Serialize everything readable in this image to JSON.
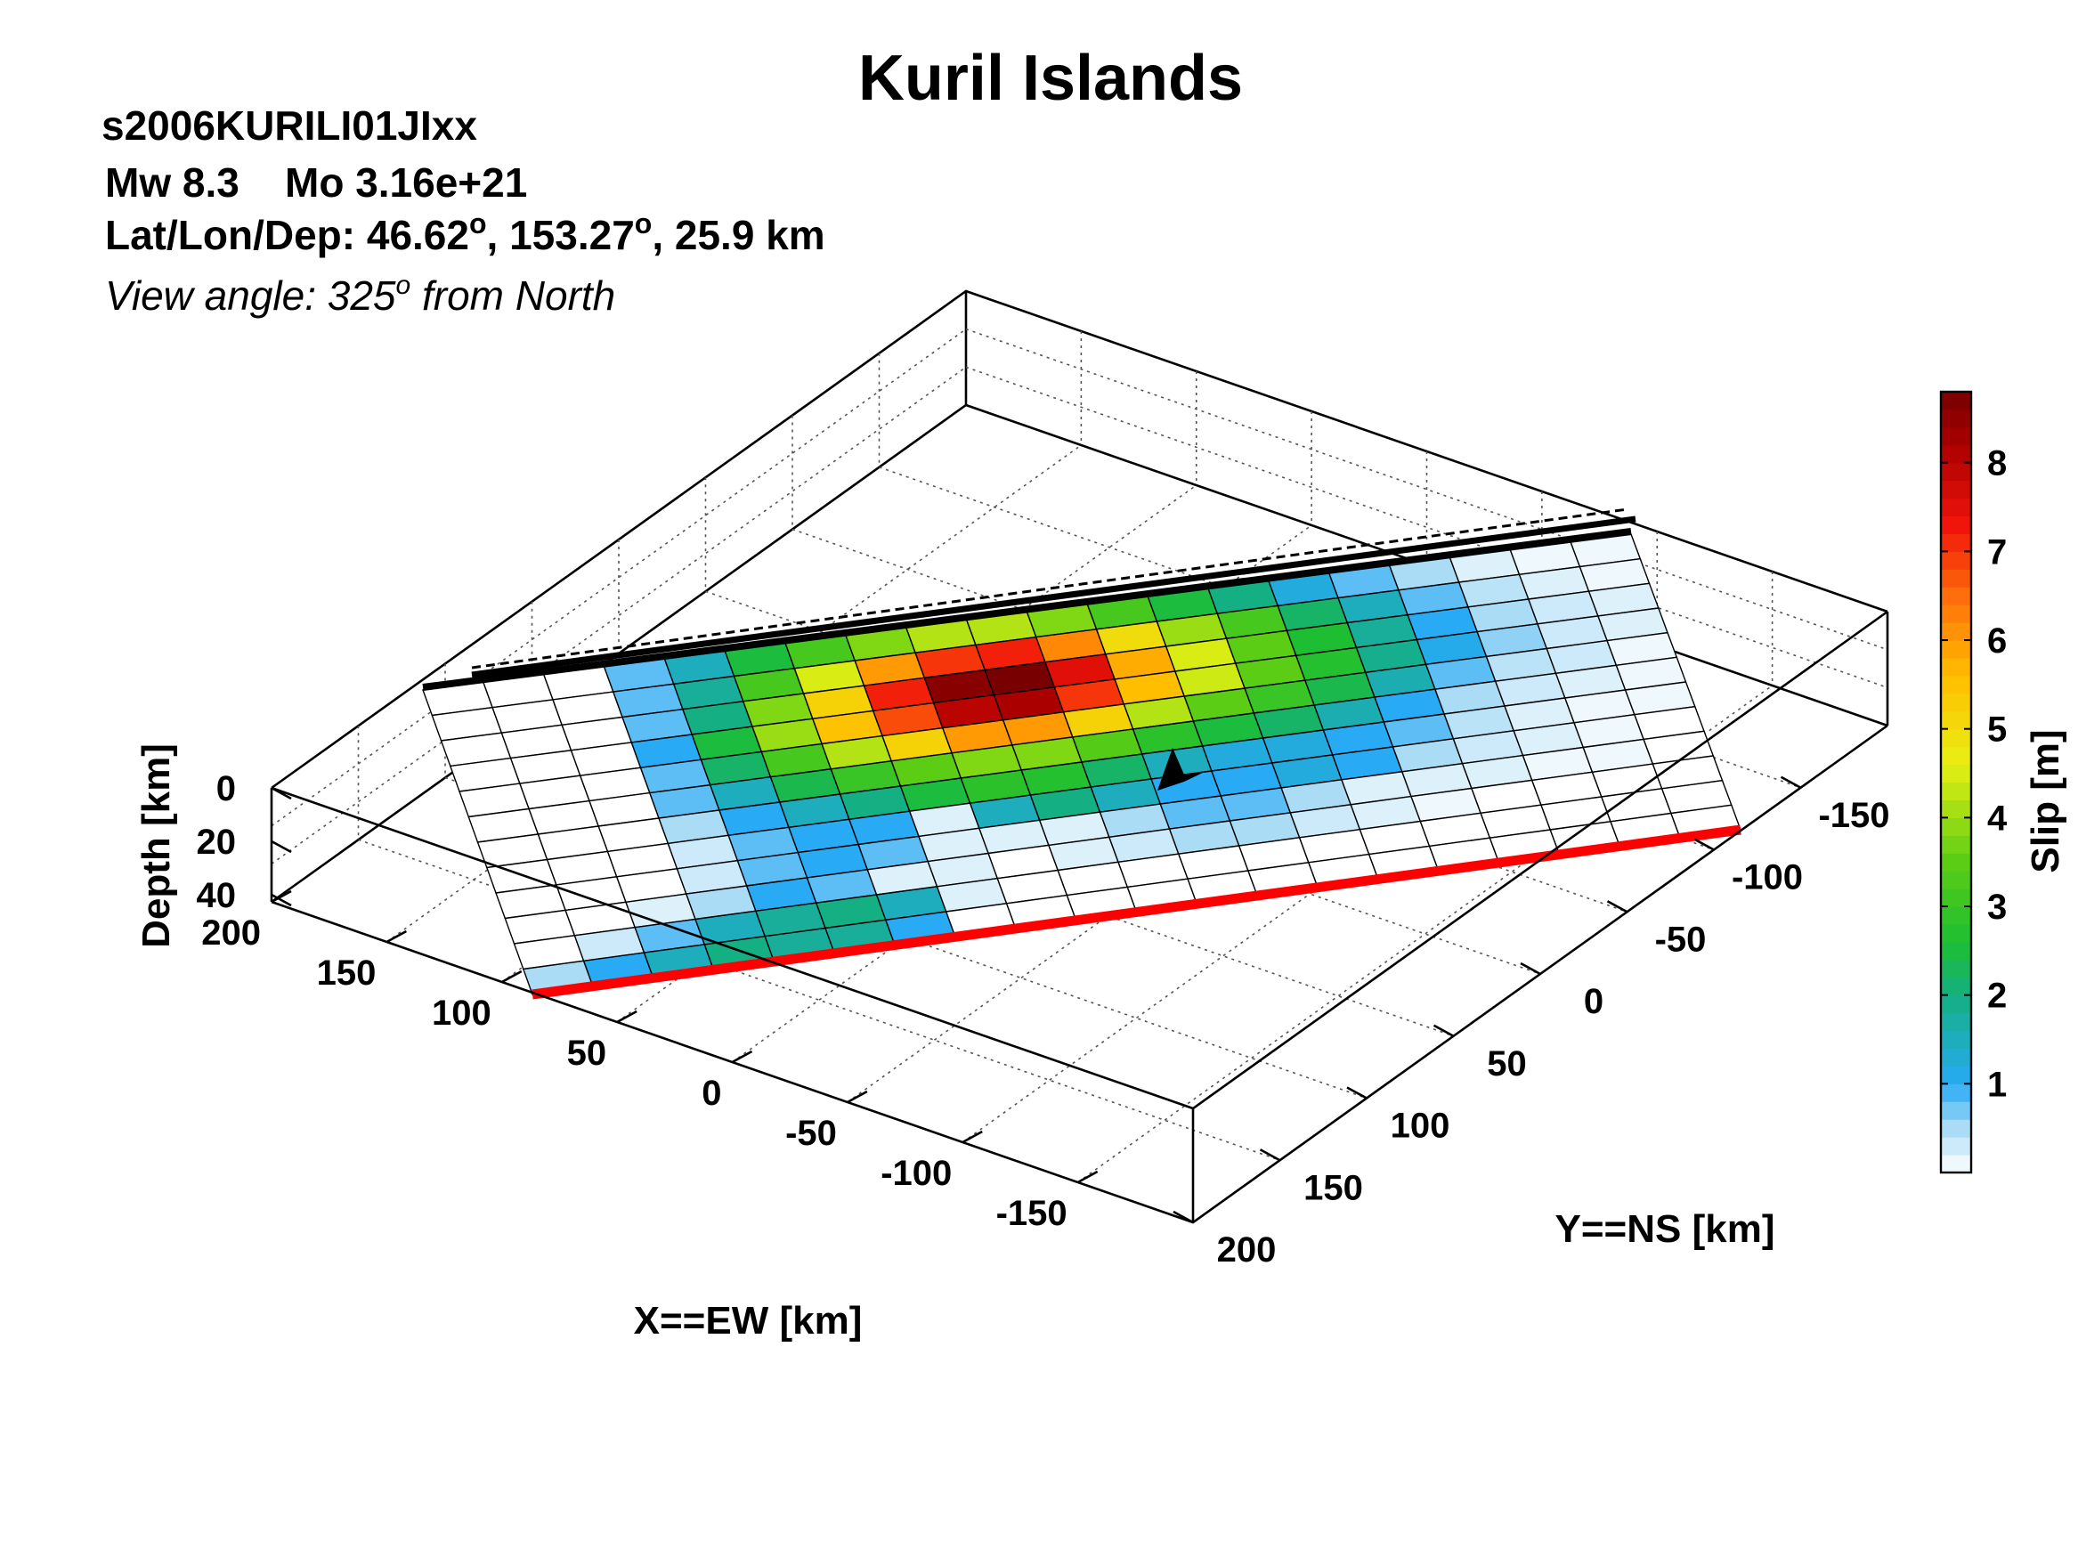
{
  "header": {
    "title": "Kuril Islands",
    "event_id": "s2006KURILI01JIxx",
    "mw": "Mw 8.3",
    "mo": "Mo 3.16e+21",
    "location_prefix": "Lat/Lon/Dep: 46.62",
    "location_mid": ", 153.27",
    "location_suffix": ", 25.9 km",
    "degree_mark": "o",
    "view_prefix": "View angle: 325",
    "view_suffix": " from North"
  },
  "colors": {
    "trench_line": "#000000",
    "bottom_edge": "#ff0000",
    "grid_line": "#000000",
    "hypocenter": "#000000"
  },
  "chart_data": {
    "type": "heatmap",
    "title": "Kuril Islands",
    "rows_shallow_to_deep": 12,
    "cols_along_strike": 20,
    "slip_m": [
      [
        0,
        0,
        0,
        0.8,
        1.5,
        2.5,
        3.2,
        3.8,
        4.2,
        4.2,
        3.8,
        3.2,
        2.5,
        2.0,
        1.2,
        0.8,
        0.5,
        0.2,
        0.1,
        0.1
      ],
      [
        0,
        0,
        0,
        0.8,
        1.8,
        3.2,
        4.5,
        6.0,
        7.0,
        7.2,
        6.2,
        5.0,
        4.0,
        3.2,
        2.2,
        1.5,
        0.8,
        0.4,
        0.2,
        0.1
      ],
      [
        0,
        0,
        0,
        0.8,
        2.0,
        3.8,
        5.2,
        7.2,
        8.6,
        8.8,
        7.5,
        5.8,
        4.5,
        3.5,
        2.6,
        1.8,
        1.0,
        0.5,
        0.3,
        0.2
      ],
      [
        0,
        0,
        0,
        1.0,
        2.5,
        4.0,
        5.5,
        6.8,
        8.0,
        8.2,
        7.0,
        5.6,
        4.4,
        3.5,
        2.7,
        1.9,
        1.1,
        0.6,
        0.3,
        0.2
      ],
      [
        0,
        0,
        0,
        0.8,
        2.2,
        3.2,
        4.2,
        5.2,
        6.0,
        6.0,
        5.2,
        4.2,
        3.5,
        3.0,
        2.4,
        1.6,
        0.8,
        0.4,
        0.3,
        0.1
      ],
      [
        0,
        0,
        0,
        0.8,
        1.5,
        2.4,
        3.0,
        3.5,
        3.8,
        3.8,
        3.4,
        2.8,
        2.5,
        2.2,
        1.6,
        1.0,
        0.5,
        0.3,
        0.2,
        0.1
      ],
      [
        0,
        0,
        0,
        0.5,
        1.0,
        1.5,
        2.0,
        2.5,
        2.8,
        2.7,
        2.2,
        1.5,
        1.2,
        1.2,
        1.0,
        0.8,
        0.4,
        0.2,
        0.1,
        0.1
      ],
      [
        0,
        0,
        0,
        0.3,
        0.8,
        1.0,
        1.0,
        0.2,
        1.5,
        2.0,
        1.5,
        1.0,
        1.0,
        1.2,
        1.0,
        0.5,
        0.3,
        0.2,
        0.1,
        0
      ],
      [
        0,
        0,
        0,
        0.3,
        0.8,
        1.0,
        0.8,
        0.2,
        0.2,
        0.2,
        0.5,
        0.8,
        0.8,
        0.5,
        0.2,
        0.2,
        0.2,
        0.1,
        0.1,
        0
      ],
      [
        0,
        0,
        0.2,
        0.5,
        1.0,
        0.8,
        0.2,
        0.2,
        0,
        0.2,
        0.3,
        0.5,
        0.5,
        0.3,
        0.2,
        0.1,
        0,
        0,
        0,
        0
      ],
      [
        0,
        0.3,
        0.8,
        1.5,
        1.8,
        2.0,
        1.5,
        0.2,
        0,
        0,
        0,
        0,
        0,
        0,
        0,
        0,
        0,
        0,
        0,
        0
      ],
      [
        0.5,
        1.0,
        1.5,
        2.0,
        1.8,
        1.8,
        1.0,
        0,
        0,
        0,
        0,
        0,
        0,
        0,
        0,
        0,
        0,
        0,
        0,
        0
      ]
    ],
    "colorbar": {
      "label": "Slip [m]",
      "min": 0,
      "max": 8.8,
      "ticks": [
        "1",
        "2",
        "3",
        "4",
        "5",
        "6",
        "7",
        "8"
      ]
    },
    "x_axis": {
      "label": "X==EW [km]",
      "ticks": [
        "200",
        "150",
        "100",
        "50",
        "0",
        "-50",
        "-100",
        "-150"
      ]
    },
    "y_axis": {
      "label": "Y==NS [km]",
      "ticks": [
        "200",
        "150",
        "100",
        "50",
        "0",
        "-50",
        "-100",
        "-150"
      ]
    },
    "z_axis": {
      "label": "Depth [km]",
      "ticks": [
        "0",
        "20",
        "40"
      ]
    },
    "grid": true
  }
}
